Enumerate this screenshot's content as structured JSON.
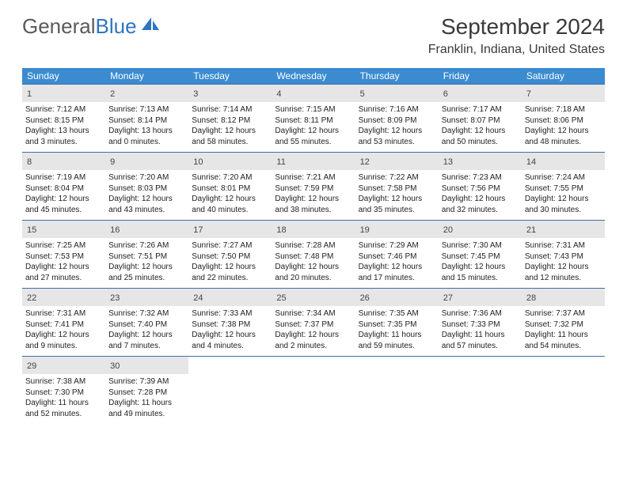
{
  "logo": {
    "text_gray": "General",
    "text_blue": "Blue"
  },
  "title": "September 2024",
  "location": "Franklin, Indiana, United States",
  "colors": {
    "header_bg": "#3b8bd0",
    "header_text": "#ffffff",
    "row_border": "#3b6fa8",
    "daynum_bg": "#e6e6e6",
    "body_text": "#222222",
    "logo_gray": "#5a5a5a",
    "logo_blue": "#2e75c0"
  },
  "day_names": [
    "Sunday",
    "Monday",
    "Tuesday",
    "Wednesday",
    "Thursday",
    "Friday",
    "Saturday"
  ],
  "weeks": [
    [
      {
        "n": "1",
        "sr": "7:12 AM",
        "ss": "8:15 PM",
        "dl": "13 hours and 3 minutes."
      },
      {
        "n": "2",
        "sr": "7:13 AM",
        "ss": "8:14 PM",
        "dl": "13 hours and 0 minutes."
      },
      {
        "n": "3",
        "sr": "7:14 AM",
        "ss": "8:12 PM",
        "dl": "12 hours and 58 minutes."
      },
      {
        "n": "4",
        "sr": "7:15 AM",
        "ss": "8:11 PM",
        "dl": "12 hours and 55 minutes."
      },
      {
        "n": "5",
        "sr": "7:16 AM",
        "ss": "8:09 PM",
        "dl": "12 hours and 53 minutes."
      },
      {
        "n": "6",
        "sr": "7:17 AM",
        "ss": "8:07 PM",
        "dl": "12 hours and 50 minutes."
      },
      {
        "n": "7",
        "sr": "7:18 AM",
        "ss": "8:06 PM",
        "dl": "12 hours and 48 minutes."
      }
    ],
    [
      {
        "n": "8",
        "sr": "7:19 AM",
        "ss": "8:04 PM",
        "dl": "12 hours and 45 minutes."
      },
      {
        "n": "9",
        "sr": "7:20 AM",
        "ss": "8:03 PM",
        "dl": "12 hours and 43 minutes."
      },
      {
        "n": "10",
        "sr": "7:20 AM",
        "ss": "8:01 PM",
        "dl": "12 hours and 40 minutes."
      },
      {
        "n": "11",
        "sr": "7:21 AM",
        "ss": "7:59 PM",
        "dl": "12 hours and 38 minutes."
      },
      {
        "n": "12",
        "sr": "7:22 AM",
        "ss": "7:58 PM",
        "dl": "12 hours and 35 minutes."
      },
      {
        "n": "13",
        "sr": "7:23 AM",
        "ss": "7:56 PM",
        "dl": "12 hours and 32 minutes."
      },
      {
        "n": "14",
        "sr": "7:24 AM",
        "ss": "7:55 PM",
        "dl": "12 hours and 30 minutes."
      }
    ],
    [
      {
        "n": "15",
        "sr": "7:25 AM",
        "ss": "7:53 PM",
        "dl": "12 hours and 27 minutes."
      },
      {
        "n": "16",
        "sr": "7:26 AM",
        "ss": "7:51 PM",
        "dl": "12 hours and 25 minutes."
      },
      {
        "n": "17",
        "sr": "7:27 AM",
        "ss": "7:50 PM",
        "dl": "12 hours and 22 minutes."
      },
      {
        "n": "18",
        "sr": "7:28 AM",
        "ss": "7:48 PM",
        "dl": "12 hours and 20 minutes."
      },
      {
        "n": "19",
        "sr": "7:29 AM",
        "ss": "7:46 PM",
        "dl": "12 hours and 17 minutes."
      },
      {
        "n": "20",
        "sr": "7:30 AM",
        "ss": "7:45 PM",
        "dl": "12 hours and 15 minutes."
      },
      {
        "n": "21",
        "sr": "7:31 AM",
        "ss": "7:43 PM",
        "dl": "12 hours and 12 minutes."
      }
    ],
    [
      {
        "n": "22",
        "sr": "7:31 AM",
        "ss": "7:41 PM",
        "dl": "12 hours and 9 minutes."
      },
      {
        "n": "23",
        "sr": "7:32 AM",
        "ss": "7:40 PM",
        "dl": "12 hours and 7 minutes."
      },
      {
        "n": "24",
        "sr": "7:33 AM",
        "ss": "7:38 PM",
        "dl": "12 hours and 4 minutes."
      },
      {
        "n": "25",
        "sr": "7:34 AM",
        "ss": "7:37 PM",
        "dl": "12 hours and 2 minutes."
      },
      {
        "n": "26",
        "sr": "7:35 AM",
        "ss": "7:35 PM",
        "dl": "11 hours and 59 minutes."
      },
      {
        "n": "27",
        "sr": "7:36 AM",
        "ss": "7:33 PM",
        "dl": "11 hours and 57 minutes."
      },
      {
        "n": "28",
        "sr": "7:37 AM",
        "ss": "7:32 PM",
        "dl": "11 hours and 54 minutes."
      }
    ],
    [
      {
        "n": "29",
        "sr": "7:38 AM",
        "ss": "7:30 PM",
        "dl": "11 hours and 52 minutes."
      },
      {
        "n": "30",
        "sr": "7:39 AM",
        "ss": "7:28 PM",
        "dl": "11 hours and 49 minutes."
      },
      null,
      null,
      null,
      null,
      null
    ]
  ],
  "labels": {
    "sunrise": "Sunrise:",
    "sunset": "Sunset:",
    "daylight": "Daylight:"
  }
}
